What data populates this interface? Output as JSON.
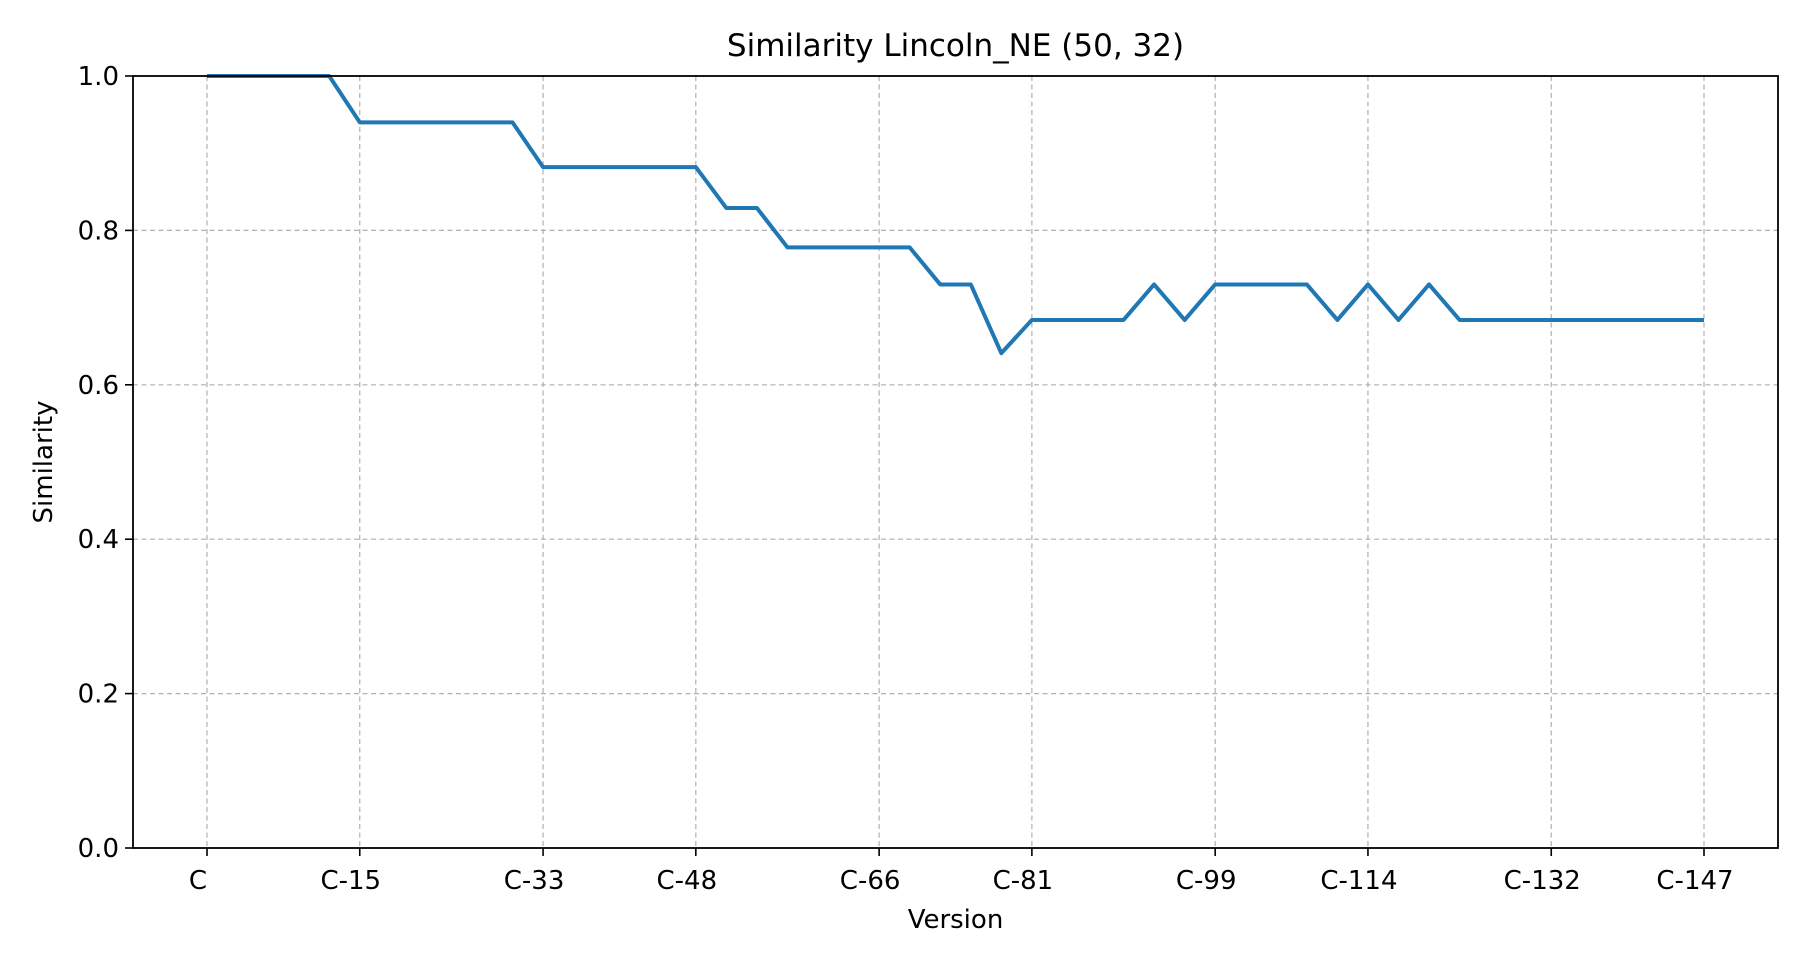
{
  "chart_data": {
    "type": "line",
    "title": "Similarity Lincoln_NE (50, 32)",
    "xlabel": "Version",
    "ylabel": "Similarity",
    "ylim": [
      0,
      1
    ],
    "y_ticks": [
      "0.0",
      "0.2",
      "0.4",
      "0.6",
      "0.8",
      "1.0"
    ],
    "x_ticks": [
      {
        "index": 0,
        "label": "C"
      },
      {
        "index": 5,
        "label": "C-15"
      },
      {
        "index": 11,
        "label": "C-33"
      },
      {
        "index": 16,
        "label": "C-48"
      },
      {
        "index": 22,
        "label": "C-66"
      },
      {
        "index": 27,
        "label": "C-81"
      },
      {
        "index": 33,
        "label": "C-99"
      },
      {
        "index": 38,
        "label": "C-114"
      },
      {
        "index": 44,
        "label": "C-132"
      },
      {
        "index": 49,
        "label": "C-147"
      }
    ],
    "grid": true,
    "series": [
      {
        "color": "#1f77b4",
        "values": [
          1.0,
          1.0,
          1.0,
          1.0,
          1.0,
          0.94,
          0.94,
          0.94,
          0.94,
          0.94,
          0.94,
          0.882,
          0.882,
          0.882,
          0.882,
          0.882,
          0.882,
          0.829,
          0.829,
          0.778,
          0.778,
          0.778,
          0.778,
          0.778,
          0.73,
          0.73,
          0.641,
          0.684,
          0.684,
          0.684,
          0.684,
          0.73,
          0.684,
          0.73,
          0.73,
          0.73,
          0.73,
          0.684,
          0.73,
          0.684,
          0.73,
          0.684,
          0.684,
          0.684,
          0.684,
          0.684,
          0.684,
          0.684,
          0.684,
          0.684
        ]
      }
    ]
  }
}
